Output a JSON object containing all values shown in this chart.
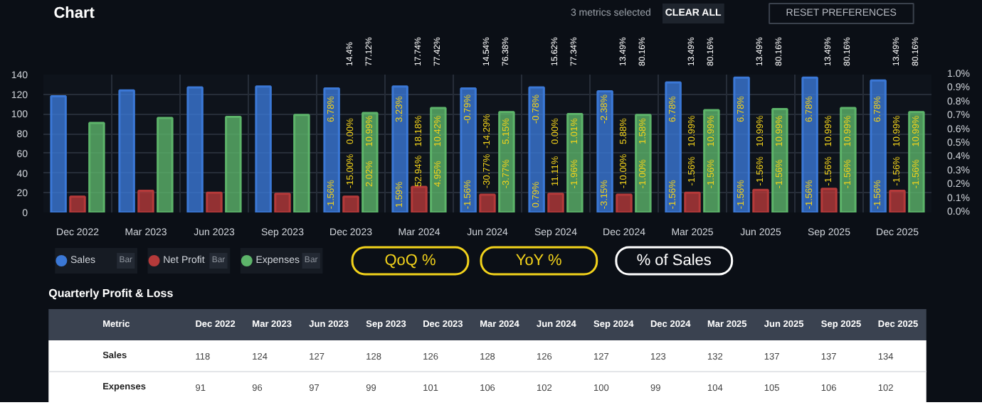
{
  "chart_data": [
    {
      "type": "bar",
      "title": "Chart",
      "categories": [
        "Dec 2022",
        "Mar 2023",
        "Jun 2023",
        "Sep 2023",
        "Dec 2023",
        "Mar 2024",
        "Jun 2024",
        "Sep 2024",
        "Dec 2024",
        "Mar 2025",
        "Jun 2025",
        "Sep 2025",
        "Dec 2025"
      ],
      "series": [
        {
          "name": "Sales",
          "color": "#3b78d6",
          "values": [
            118,
            124,
            127,
            128,
            126,
            128,
            126,
            127,
            123,
            132,
            137,
            137,
            134
          ]
        },
        {
          "name": "Net Profit",
          "color": "#b53a3a",
          "values": [
            16,
            22,
            20,
            19,
            16,
            26,
            18,
            19,
            18,
            20,
            23,
            24,
            22
          ]
        },
        {
          "name": "Expenses",
          "color": "#5db46a",
          "values": [
            91,
            96,
            97,
            99,
            101,
            106,
            102,
            100,
            99,
            104,
            105,
            106,
            102
          ]
        }
      ],
      "ylim": [
        0,
        140
      ],
      "yticks": [
        0,
        20,
        40,
        60,
        80,
        100,
        120,
        140
      ],
      "y2lim": [
        0,
        1
      ],
      "y2ticks": [
        {
          "value": 0,
          "label": "0.0%"
        },
        {
          "value": 0.1,
          "label": "0.1%"
        },
        {
          "value": 0.2,
          "label": "0.2%"
        },
        {
          "value": 0.3,
          "label": "0.3%"
        },
        {
          "value": 0.4,
          "label": "0.4%"
        },
        {
          "value": 0.5,
          "label": "0.5%"
        },
        {
          "value": 0.6,
          "label": "0.6%"
        },
        {
          "value": 0.7,
          "label": "0.7%"
        },
        {
          "value": 0.8,
          "label": "0.8%"
        },
        {
          "value": 0.9,
          "label": "0.9%"
        },
        {
          "value": 1,
          "label": "1.0%"
        }
      ],
      "grid": true,
      "legend": "bottom",
      "annotations": [
        "3 metrics selected",
        "CLEAR ALL",
        "RESET PREFERENCES",
        "QoQ %",
        "YoY %",
        "% of Sales",
        "Bar",
        "Bar",
        "Bar",
        "6.78%",
        "-1.56%",
        "0.00%",
        "-15.00%",
        "10.99%",
        "2.02%",
        "14.4%",
        "77.12%",
        "3.23%",
        "1.59%",
        "18.18%",
        "52.94%",
        "10.42%",
        "4.95%",
        "17.74%",
        "77.42%",
        "-0.79%",
        "-1.56%",
        "-14.29%",
        "-30.77%",
        "5.15%",
        "-3.77%",
        "14.54%",
        "76.38%",
        "-0.78%",
        "0.79%",
        "0.00%",
        "11.11%",
        "1.01%",
        "-1.96%",
        "15.62%",
        "77.34%",
        "-2.38%",
        "-3.15%",
        "5.88%",
        "-10.00%",
        "1.58%",
        "-1.00%",
        "13.49%",
        "80.16%",
        "6.78%",
        "-1.56%",
        "10.99%",
        "-1.56%",
        "10.99%",
        "-1.56%",
        "13.49%",
        "80.16%",
        "6.78%",
        "-1.56%",
        "10.99%",
        "-1.56%",
        "10.99%",
        "-1.56%",
        "13.49%",
        "80.16%",
        "6.78%",
        "-1.56%",
        "10.99%",
        "-1.56%",
        "10.99%",
        "-1.56%",
        "13.49%",
        "80.16%",
        "6.78%",
        "-1.56%",
        "10.99%",
        "-1.56%",
        "10.99%",
        "-1.56%",
        "13.49%",
        "80.16%"
      ]
    },
    {
      "type": "other",
      "title": "Quarterly Profit & Loss",
      "categories": [
        "Dec 2022",
        "Mar 2023",
        "Jun 2023",
        "Sep 2023",
        "Dec 2023",
        "Mar 2024",
        "Jun 2024",
        "Sep 2024",
        "Dec 2024",
        "Mar 2025",
        "Jun 2025",
        "Sep 2025",
        "Dec 2025"
      ],
      "series": [
        {
          "name": "Sales",
          "values": [
            118,
            124,
            127,
            128,
            126,
            128,
            126,
            127,
            123,
            132,
            137,
            137,
            134
          ]
        },
        {
          "name": "Expenses",
          "values": [
            91,
            96,
            97,
            99,
            101,
            106,
            102,
            100,
            99,
            104,
            105,
            106,
            102
          ]
        }
      ],
      "data_labels": true,
      "annotations": [
        "Metric"
      ]
    }
  ]
}
